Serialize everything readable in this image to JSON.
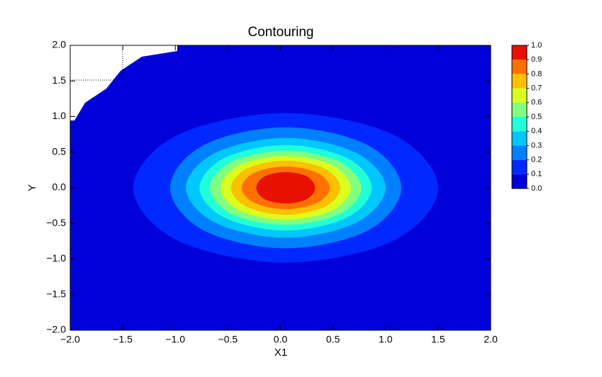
{
  "chart_data": {
    "type": "contour",
    "title": "Contouring",
    "xlabel": "X1",
    "ylabel": "Y",
    "xlim": [
      -2,
      2
    ],
    "ylim": [
      -2,
      2
    ],
    "xticks": [
      {
        "value": -2,
        "label": "−2.0"
      },
      {
        "value": -1.5,
        "label": "−1.5"
      },
      {
        "value": -1,
        "label": "−1.0"
      },
      {
        "value": -0.5,
        "label": "−0.5"
      },
      {
        "value": 0,
        "label": "0.0"
      },
      0.5,
      {
        "value": 1,
        "label": "1.0"
      },
      1.5,
      {
        "value": 2,
        "label": "2.0"
      }
    ],
    "yticks": [
      {
        "value": -2,
        "label": "−2.0"
      },
      {
        "value": -1.5,
        "label": "−1.5"
      },
      {
        "value": -1,
        "label": "−1.0"
      },
      {
        "value": -0.5,
        "label": "−0.5"
      },
      {
        "value": 0,
        "label": "0.0"
      },
      0.5,
      {
        "value": 1,
        "label": "1.0"
      },
      1.5,
      {
        "value": 2,
        "label": "2.0"
      }
    ],
    "colorbar_ticks": [
      {
        "value": 0,
        "label": "0.0"
      },
      0.1,
      0.2,
      0.3,
      0.4,
      0.5,
      0.6,
      0.7,
      0.8,
      0.9,
      {
        "value": 1,
        "label": "1.0"
      }
    ],
    "colors": [
      "#0000d8",
      "#0028ff",
      "#0080ff",
      "#00c8ff",
      "#20ffd8",
      "#80ff80",
      "#d8ff20",
      "#ffc000",
      "#ff7000",
      "#e81000"
    ],
    "contours": [
      {
        "level": 0.1,
        "x": [
          1.5,
          1.08,
          0.05,
          -0.98,
          -1.4,
          -0.98,
          0.05,
          1.08
        ],
        "y": [
          0,
          0.74,
          1.05,
          0.74,
          0,
          -0.74,
          -1.05,
          -0.74
        ]
      },
      {
        "level": 0.2,
        "x": [
          1.15,
          0.83,
          0.05,
          -0.73,
          -1.05,
          -0.73,
          0.05,
          0.83
        ],
        "y": [
          0,
          0.6,
          0.85,
          0.6,
          0,
          -0.6,
          -0.85,
          -0.6
        ]
      },
      {
        "level": 0.3,
        "x": [
          1.0,
          0.72,
          0.05,
          -0.62,
          -0.9,
          -0.62,
          0.05,
          0.72
        ],
        "y": [
          0,
          0.49,
          0.7,
          0.49,
          0,
          -0.49,
          -0.7,
          -0.49
        ]
      },
      {
        "level": 0.4,
        "x": [
          0.87,
          0.63,
          0.05,
          -0.53,
          -0.77,
          -0.53,
          0.05,
          0.63
        ],
        "y": [
          0,
          0.42,
          0.6,
          0.42,
          0,
          -0.42,
          -0.6,
          -0.42
        ]
      },
      {
        "level": 0.5,
        "x": [
          0.77,
          0.56,
          0.05,
          -0.46,
          -0.67,
          -0.46,
          0.05,
          0.56
        ],
        "y": [
          0,
          0.37,
          0.52,
          0.37,
          0,
          -0.37,
          -0.52,
          -0.37
        ]
      },
      {
        "level": 0.6,
        "x": [
          0.67,
          0.49,
          0.05,
          -0.39,
          -0.57,
          -0.39,
          0.05,
          0.49
        ],
        "y": [
          0,
          0.32,
          0.45,
          0.32,
          0,
          -0.32,
          -0.45,
          -0.32
        ]
      },
      {
        "level": 0.7,
        "x": [
          0.57,
          0.42,
          0.05,
          -0.32,
          -0.47,
          -0.32,
          0.05,
          0.42
        ],
        "y": [
          0,
          0.27,
          0.38,
          0.27,
          0,
          -0.27,
          -0.38,
          -0.27
        ]
      },
      {
        "level": 0.8,
        "x": [
          0.47,
          0.35,
          0.05,
          -0.25,
          -0.37,
          -0.25,
          0.05,
          0.35
        ],
        "y": [
          0,
          0.21,
          0.3,
          0.21,
          0,
          -0.21,
          -0.3,
          -0.21
        ]
      },
      {
        "level": 0.9,
        "x": [
          0.33,
          0.25,
          0.05,
          -0.15,
          -0.23,
          -0.15,
          0.05,
          0.25
        ],
        "y": [
          0,
          0.16,
          0.22,
          0.16,
          0,
          -0.16,
          -0.22,
          -0.16
        ]
      }
    ]
  }
}
